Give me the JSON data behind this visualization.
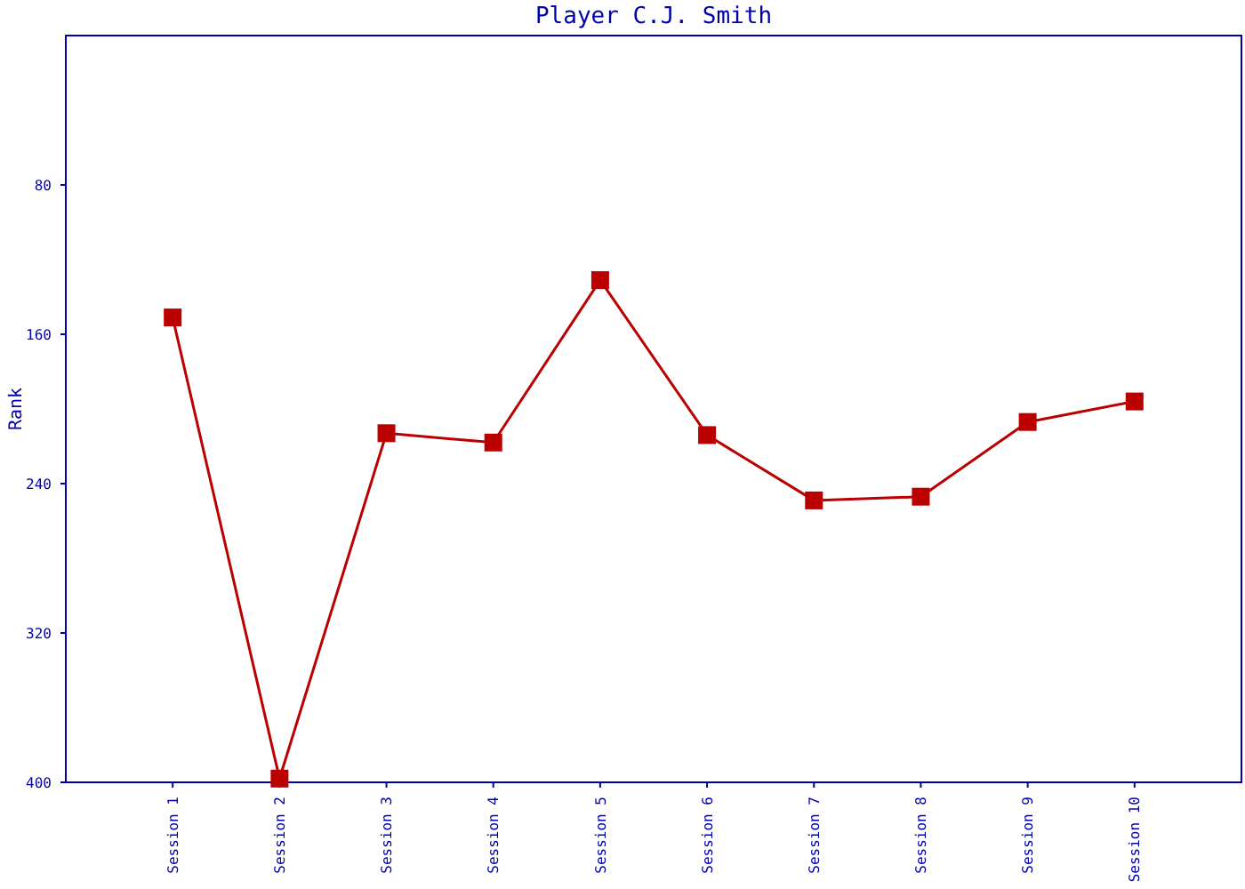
{
  "chart_data": {
    "type": "line",
    "title": "Player C.J. Smith",
    "ylabel": "Rank",
    "categories": [
      "Session 1",
      "Session 2",
      "Session 3",
      "Session 4",
      "Session 5",
      "Session 6",
      "Session 7",
      "Session 8",
      "Session 9",
      "Session 10"
    ],
    "series": [
      {
        "color": "#bb0000",
        "values": [
          151,
          398,
          213,
          218,
          131,
          214,
          249,
          247,
          207,
          196
        ]
      }
    ],
    "ylim": [
      400,
      0
    ],
    "yticks": [
      80,
      160,
      240,
      320,
      400
    ],
    "marker": "square",
    "line_style": "solid"
  }
}
